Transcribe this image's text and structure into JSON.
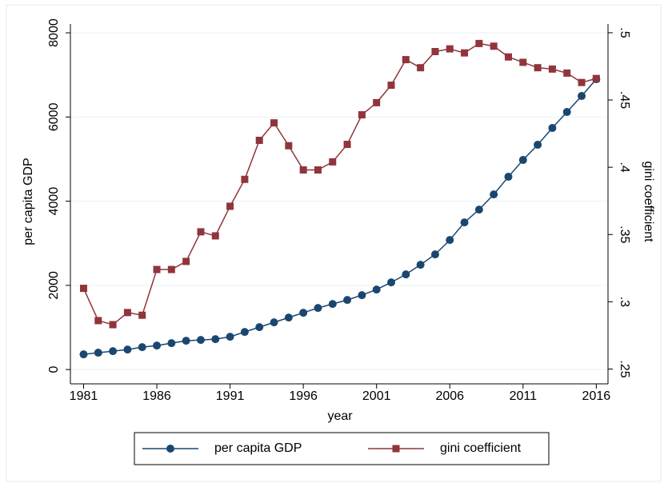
{
  "chart_data": {
    "type": "line",
    "x_label": "year",
    "y_label": "per capita GDP",
    "y2_label": "gini coefficient",
    "x": [
      1981,
      1982,
      1983,
      1984,
      1985,
      1986,
      1987,
      1988,
      1989,
      1990,
      1991,
      1992,
      1993,
      1994,
      1995,
      1996,
      1997,
      1998,
      1999,
      2000,
      2001,
      2002,
      2003,
      2004,
      2005,
      2006,
      2007,
      2008,
      2009,
      2010,
      2011,
      2012,
      2013,
      2014,
      2015,
      2016
    ],
    "xlim": [
      1980.1,
      2016.8
    ],
    "xticks": [
      1981,
      1986,
      1991,
      1996,
      2001,
      2006,
      2011,
      2016
    ],
    "ylim": [
      -340,
      8210
    ],
    "yticks": [
      0,
      2000,
      4000,
      6000,
      8000
    ],
    "y2lim": [
      0.239,
      0.5065
    ],
    "y2ticks": [
      {
        "value": 0.25,
        "label": ".25"
      },
      {
        "value": 0.3,
        "label": ".3"
      },
      {
        "value": 0.35,
        "label": ".35"
      },
      {
        "value": 0.4,
        "label": ".4"
      },
      {
        "value": 0.45,
        "label": ".45"
      },
      {
        "value": 0.5,
        "label": ".5"
      }
    ],
    "grid": true,
    "legend": "bottom",
    "series": [
      {
        "name": "per capita GDP",
        "color": "#1a476f",
        "marker": "circle",
        "values": [
          361,
          400,
          437,
          475,
          532,
          570,
          627,
          684,
          703,
          722,
          779,
          893,
          1007,
          1121,
          1235,
          1349,
          1463,
          1558,
          1653,
          1767,
          1900,
          2071,
          2261,
          2489,
          2736,
          3078,
          3496,
          3800,
          4161,
          4580,
          4979,
          5340,
          5739,
          6119,
          6499,
          6898
        ]
      },
      {
        "name": "gini coefficient",
        "color": "#90353b",
        "marker": "square",
        "axis": "y2",
        "values": [
          0.31,
          0.286,
          0.283,
          0.292,
          0.29,
          0.324,
          0.324,
          0.33,
          0.352,
          0.349,
          0.371,
          0.391,
          0.42,
          0.433,
          0.416,
          0.398,
          0.398,
          0.404,
          0.417,
          0.439,
          0.448,
          0.461,
          0.48,
          0.474,
          0.486,
          0.488,
          0.485,
          0.492,
          0.49,
          0.482,
          0.478,
          0.474,
          0.473,
          0.47,
          0.463,
          0.466
        ]
      }
    ]
  }
}
